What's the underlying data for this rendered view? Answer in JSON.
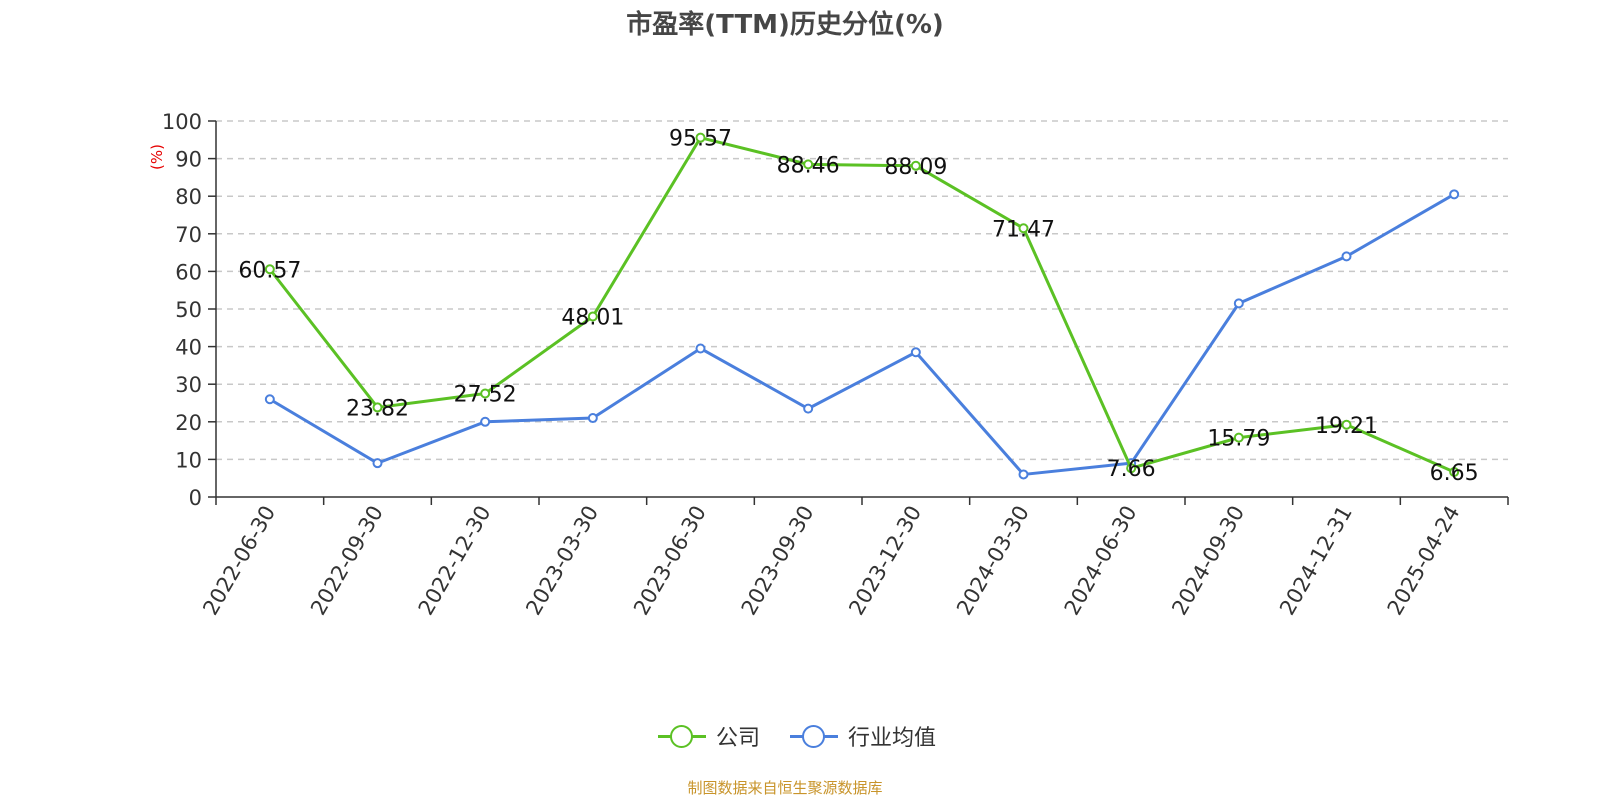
{
  "title": "市盈率(TTM)历史分位(%)",
  "source": "制图数据来自恒生聚源数据库",
  "colors": {
    "company": "#5bc124",
    "industry": "#4a7fdd",
    "axis": "#333333",
    "unit": "#e60000",
    "grid": "#c8c8c8"
  },
  "chart_data": {
    "type": "line",
    "title": "市盈率(TTM)历史分位(%)",
    "ylabel": "(%)",
    "ylim": [
      0,
      100
    ],
    "yticks": [
      0,
      10,
      20,
      30,
      40,
      50,
      60,
      70,
      80,
      90,
      100
    ],
    "grid": true,
    "legend_position": "bottom",
    "categories": [
      "2022-06-30",
      "2022-09-30",
      "2022-12-30",
      "2023-03-30",
      "2023-06-30",
      "2023-09-30",
      "2023-12-30",
      "2024-03-30",
      "2024-06-30",
      "2024-09-30",
      "2024-12-31",
      "2025-04-24"
    ],
    "series": [
      {
        "name": "公司",
        "color": "#5bc124",
        "labeled": true,
        "values": [
          60.57,
          23.82,
          27.52,
          48.01,
          95.57,
          88.46,
          88.09,
          71.47,
          7.66,
          15.79,
          19.21,
          6.65
        ]
      },
      {
        "name": "行业均值",
        "color": "#4a7fdd",
        "labeled": false,
        "values": [
          26,
          9,
          20,
          21,
          39.5,
          23.5,
          38.5,
          6,
          9,
          51.5,
          64,
          80.5
        ]
      }
    ]
  }
}
